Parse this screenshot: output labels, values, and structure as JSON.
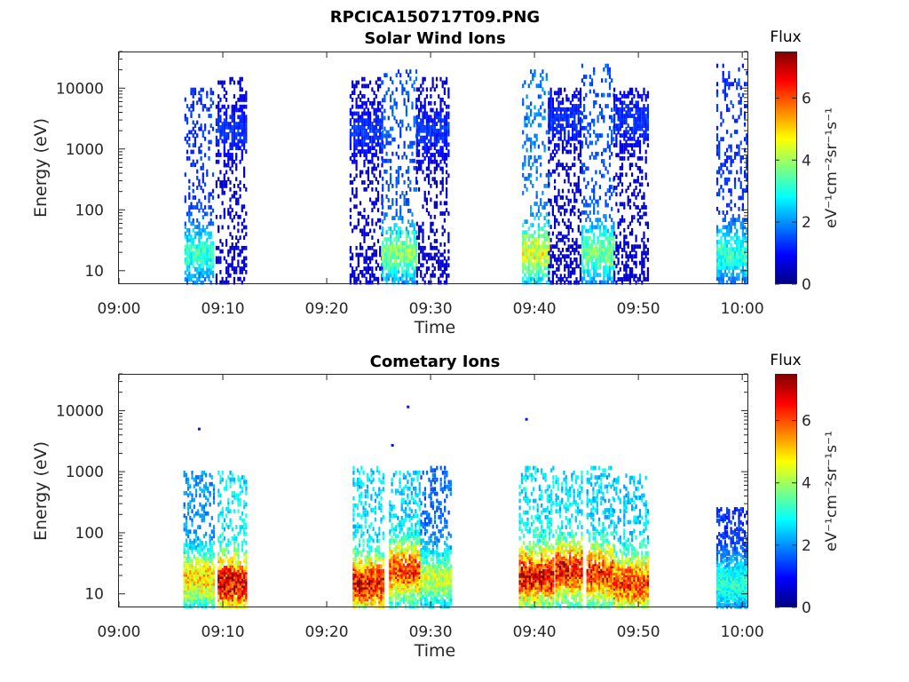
{
  "figure_title": "RPCICA150717T09.PNG",
  "colormap": {
    "name": "jet",
    "stops": [
      "#00007f",
      "#0000ff",
      "#007fff",
      "#00ffff",
      "#7fff7f",
      "#ffff00",
      "#ff7f00",
      "#ff0000",
      "#7f0000"
    ]
  },
  "chart_data": [
    {
      "type": "heatmap",
      "title": "Solar Wind Ions",
      "xlabel": "Time",
      "ylabel": "Energy (eV)",
      "x_ticks": [
        "09:00",
        "09:10",
        "09:20",
        "09:30",
        "09:40",
        "09:50",
        "10:00"
      ],
      "x_range_minutes_after_0900": [
        0,
        60.5
      ],
      "y_scale": "log",
      "y_range": [
        6,
        40000
      ],
      "y_ticks": [
        "10",
        "100",
        "1000",
        "10000"
      ],
      "colorbar": {
        "title": "Flux",
        "label": "eV⁻¹cm⁻²sr⁻¹s⁻¹",
        "range": [
          0,
          7.5
        ],
        "ticks": [
          "0",
          "2",
          "4",
          "6"
        ]
      },
      "bursts": [
        {
          "start": "09:06.3",
          "end": "09:09.1",
          "energy_max": 10000,
          "peak_energy": 20,
          "peak_flux": 3.5
        },
        {
          "start": "09:09.3",
          "end": "09:12.2",
          "energy_max": 15000,
          "peak_energy": 2000,
          "peak_flux": 1.4
        },
        {
          "start": "09:22.2",
          "end": "09:25.3",
          "energy_max": 15000,
          "peak_energy": 2000,
          "peak_flux": 1.4
        },
        {
          "start": "09:25.3",
          "end": "09:28.6",
          "energy_max": 20000,
          "peak_energy": 20,
          "peak_flux": 4.1
        },
        {
          "start": "09:28.6",
          "end": "09:31.8",
          "energy_max": 15000,
          "peak_energy": 2000,
          "peak_flux": 1.4
        },
        {
          "start": "09:38.8",
          "end": "09:41.3",
          "energy_max": 20000,
          "peak_energy": 20,
          "peak_flux": 4.9
        },
        {
          "start": "09:41.3",
          "end": "09:44.5",
          "energy_max": 10000,
          "peak_energy": 3000,
          "peak_flux": 1.4
        },
        {
          "start": "09:44.5",
          "end": "09:47.6",
          "energy_max": 25000,
          "peak_energy": 20,
          "peak_flux": 4.0
        },
        {
          "start": "09:47.6",
          "end": "09:51.0",
          "energy_max": 10000,
          "peak_energy": 3000,
          "peak_flux": 1.4
        },
        {
          "start": "09:57.5",
          "end": "10:00.4",
          "energy_max": 25000,
          "peak_energy": 20,
          "peak_flux": 3.4
        }
      ]
    },
    {
      "type": "heatmap",
      "title": "Cometary Ions",
      "xlabel": "Time",
      "ylabel": "Energy (eV)",
      "x_ticks": [
        "09:00",
        "09:10",
        "09:20",
        "09:30",
        "09:40",
        "09:50",
        "10:00"
      ],
      "x_range_minutes_after_0900": [
        0,
        60.5
      ],
      "y_scale": "log",
      "y_range": [
        6,
        40000
      ],
      "y_ticks": [
        "10",
        "100",
        "1000",
        "10000"
      ],
      "colorbar": {
        "title": "Flux",
        "label": "eV⁻¹cm⁻²sr⁻¹s⁻¹",
        "range": [
          0,
          7.5
        ],
        "ticks": [
          "0",
          "2",
          "4",
          "6"
        ]
      },
      "bursts": [
        {
          "start": "09:06.2",
          "end": "09:09.1",
          "energy_max": 1000,
          "peak_energy": 18,
          "peak_flux": 5.4
        },
        {
          "start": "09:09.5",
          "end": "09:12.3",
          "energy_max": 1000,
          "peak_energy": 15,
          "peak_flux": 7.3
        },
        {
          "start": "09:22.5",
          "end": "09:25.5",
          "energy_max": 1200,
          "peak_energy": 15,
          "peak_flux": 7.0
        },
        {
          "start": "09:26.0",
          "end": "09:29.0",
          "energy_max": 1000,
          "peak_energy": 25,
          "peak_flux": 6.6
        },
        {
          "start": "09:29.0",
          "end": "09:32.0",
          "energy_max": 1200,
          "peak_energy": 18,
          "peak_flux": 4.6
        },
        {
          "start": "09:38.5",
          "end": "09:41.8",
          "energy_max": 1200,
          "peak_energy": 20,
          "peak_flux": 7.2
        },
        {
          "start": "09:42.0",
          "end": "09:44.5",
          "energy_max": 1000,
          "peak_energy": 25,
          "peak_flux": 7.0
        },
        {
          "start": "09:45.0",
          "end": "09:47.6",
          "energy_max": 1200,
          "peak_energy": 22,
          "peak_flux": 6.8
        },
        {
          "start": "09:47.6",
          "end": "09:51.0",
          "energy_max": 900,
          "peak_energy": 15,
          "peak_flux": 6.6
        },
        {
          "start": "09:57.5",
          "end": "10:00.4",
          "energy_max": 250,
          "peak_energy": 15,
          "peak_flux": 3.4
        }
      ],
      "isolated_points": [
        {
          "time": "09:07.6",
          "energy": 5000
        },
        {
          "time": "09:26.2",
          "energy": 2700
        },
        {
          "time": "09:27.7",
          "energy": 11500
        },
        {
          "time": "09:39.1",
          "energy": 7200
        }
      ]
    }
  ]
}
